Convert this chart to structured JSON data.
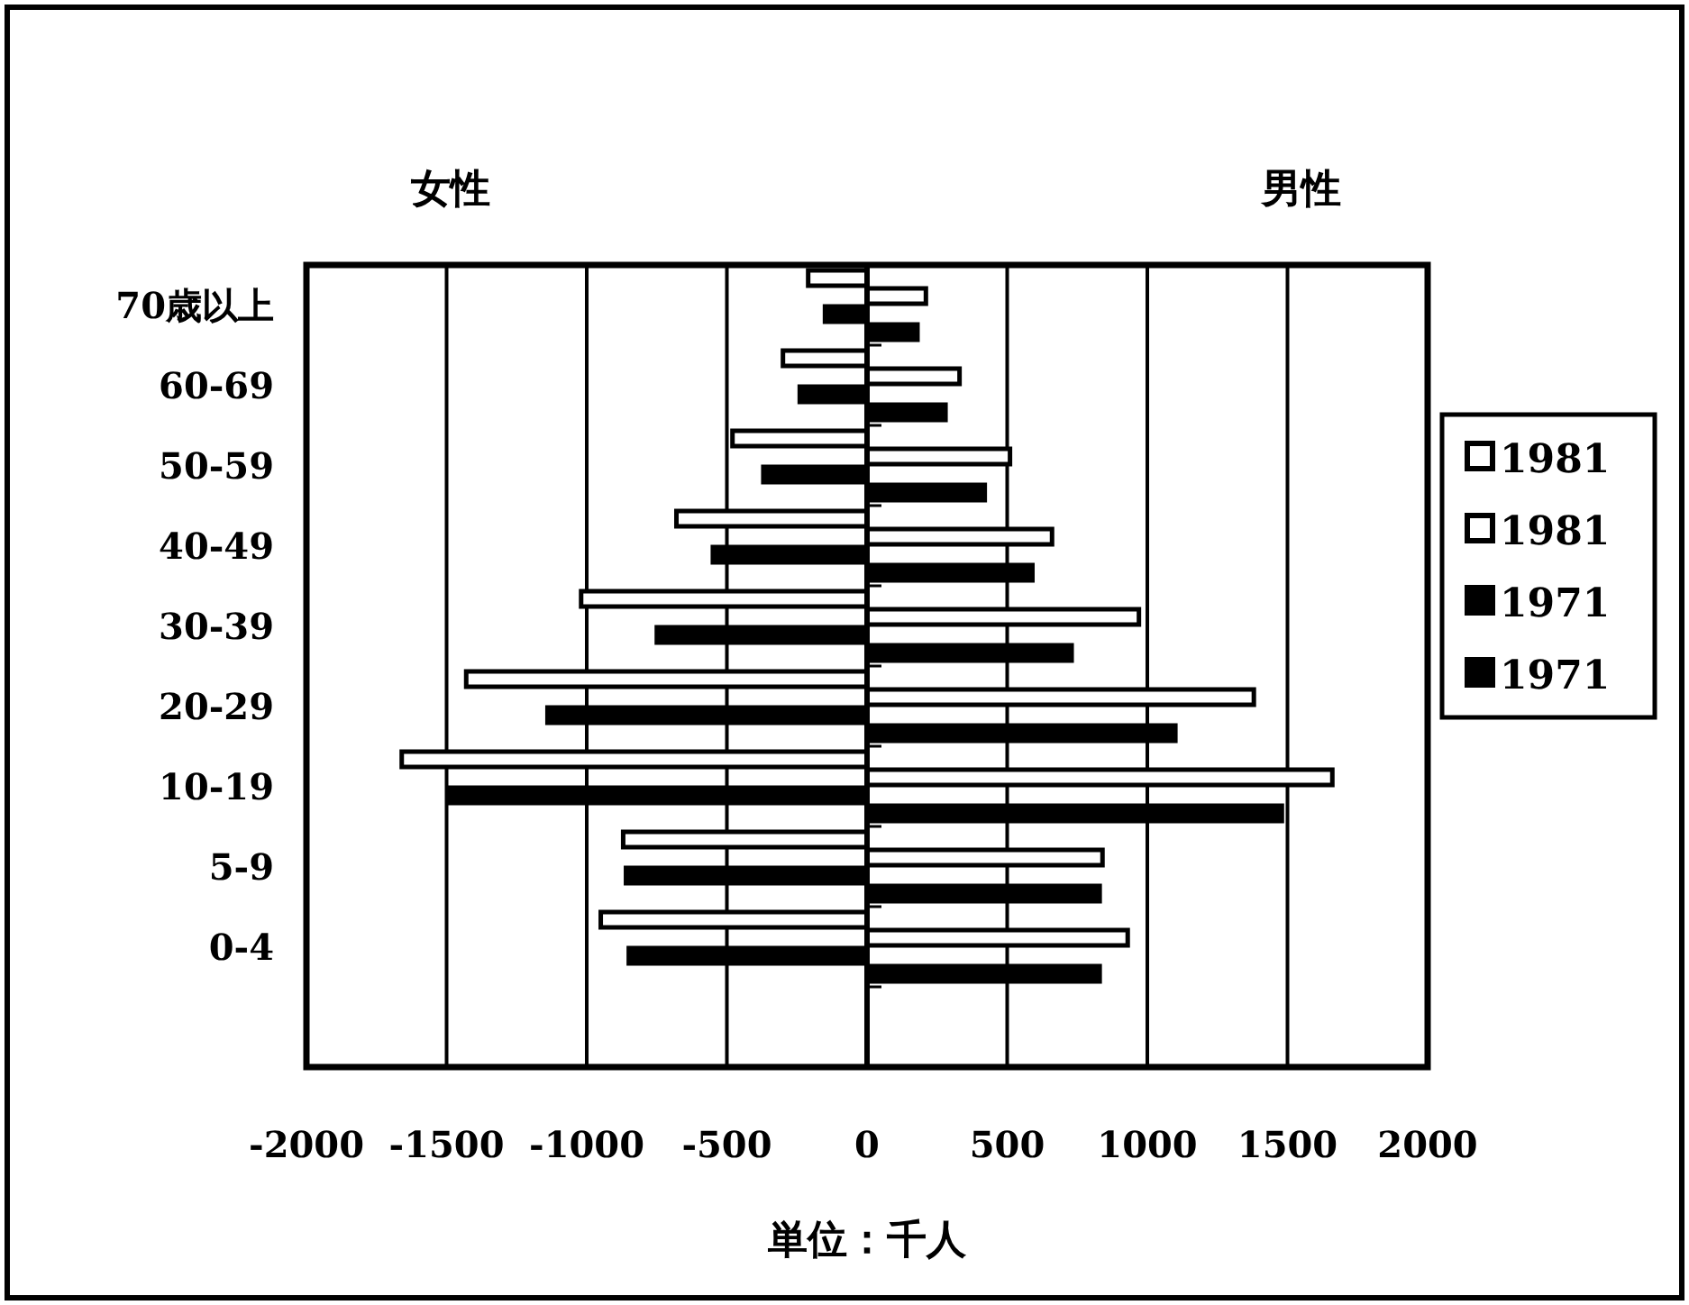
{
  "chart_data": {
    "type": "bar",
    "orientation": "horizontal",
    "xlabel": "単位：千人",
    "annotations": [
      "女性",
      "男性"
    ],
    "categories": [
      "70歳以上",
      "60-69",
      "50-59",
      "40-49",
      "30-39",
      "20-29",
      "10-19",
      "5-9",
      "0-4",
      null
    ],
    "series": [
      {
        "name": "1981",
        "color": "#ffffff",
        "values": [
          -210,
          -300,
          -480,
          -680,
          -1020,
          -1430,
          -1660,
          -870,
          -950,
          null
        ]
      },
      {
        "name": "1981",
        "color": "#ffffff",
        "values": [
          210,
          330,
          510,
          660,
          970,
          1380,
          1660,
          840,
          930,
          null
        ]
      },
      {
        "name": "1971",
        "color": "#000000",
        "values": [
          -150,
          -240,
          -370,
          -550,
          -750,
          -1140,
          -1490,
          -860,
          -850,
          null
        ]
      },
      {
        "name": "1971",
        "color": "#000000",
        "values": [
          180,
          280,
          420,
          590,
          730,
          1100,
          1480,
          830,
          830,
          null
        ]
      }
    ],
    "xlim": [
      -2000,
      2000
    ],
    "xticks": [
      -2000,
      -1500,
      -1000,
      -500,
      0,
      500,
      1000,
      1500,
      2000
    ],
    "grid": "x",
    "legend": "right"
  }
}
